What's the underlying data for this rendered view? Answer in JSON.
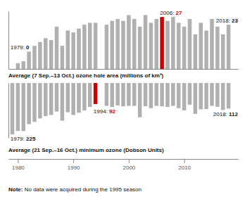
{
  "chart_data": [
    {
      "type": "bar",
      "title": "Average (7 Sep.–13 Oct.) ozone hole area (millions of km²)",
      "x": [
        1979,
        1980,
        1981,
        1982,
        1983,
        1984,
        1985,
        1986,
        1987,
        1988,
        1989,
        1990,
        1991,
        1992,
        1993,
        1994,
        1995,
        1996,
        1997,
        1998,
        1999,
        2000,
        2001,
        2002,
        2003,
        2004,
        2005,
        2006,
        2007,
        2008,
        2009,
        2010,
        2011,
        2012,
        2013,
        2014,
        2015,
        2016,
        2017,
        2018
      ],
      "values": [
        0,
        3,
        4,
        9,
        12,
        14,
        16,
        15,
        22,
        12,
        20,
        19,
        21,
        23,
        24,
        24,
        null,
        23,
        25,
        26,
        25,
        28,
        26,
        22,
        28,
        24,
        26,
        27,
        25,
        27,
        24,
        22,
        26,
        18,
        24,
        20,
        26,
        22,
        18,
        23
      ],
      "color": "#b0b0b0",
      "colors": [
        "#b0b0b0",
        "#b0b0b0",
        "#b0b0b0",
        "#b0b0b0",
        "#b0b0b0",
        "#b0b0b0",
        "#b0b0b0",
        "#b0b0b0",
        "#b0b0b0",
        "#b0b0b0",
        "#b0b0b0",
        "#b0b0b0",
        "#b0b0b0",
        "#b0b0b0",
        "#b0b0b0",
        "#b0b0b0",
        "#b0b0b0",
        "#b0b0b0",
        "#b0b0b0",
        "#b0b0b0",
        "#b0b0b0",
        "#b0b0b0",
        "#b0b0b0",
        "#b0b0b0",
        "#b0b0b0",
        "#b0b0b0",
        "#b0b0b0",
        "#cc0000",
        "#b0b0b0",
        "#b0b0b0",
        "#b0b0b0",
        "#b0b0b0",
        "#b0b0b0",
        "#b0b0b0",
        "#b0b0b0",
        "#b0b0b0",
        "#b0b0b0",
        "#b0b0b0",
        "#b0b0b0",
        "#b0b0b0"
      ],
      "xlim": [
        1978.3,
        2019.7
      ],
      "ylim": [
        0,
        30
      ],
      "tick_labels": false,
      "annotations": [
        {
          "x": 1979,
          "text": "1979: 0"
        },
        {
          "x": 2006,
          "text": "2006: 27"
        },
        {
          "x": 2018,
          "text": "2018: 23"
        }
      ]
    },
    {
      "type": "bar",
      "title": "Average (21 Sep.–16 Oct.) minimum ozone (Dobson Units)",
      "x": [
        1979,
        1980,
        1981,
        1982,
        1983,
        1984,
        1985,
        1986,
        1987,
        1988,
        1989,
        1990,
        1991,
        1992,
        1993,
        1994,
        1995,
        1996,
        1997,
        1998,
        1999,
        2000,
        2001,
        2002,
        2003,
        2004,
        2005,
        2006,
        2007,
        2008,
        2009,
        2010,
        2011,
        2012,
        2013,
        2014,
        2015,
        2016,
        2017,
        2018
      ],
      "values": [
        225,
        210,
        210,
        180,
        170,
        155,
        145,
        140,
        125,
        165,
        128,
        140,
        130,
        120,
        105,
        92,
        null,
        100,
        105,
        98,
        102,
        100,
        100,
        150,
        102,
        110,
        100,
        102,
        105,
        100,
        110,
        120,
        95,
        135,
        115,
        114,
        100,
        104,
        118,
        112
      ],
      "color": "#b0b0b0",
      "colors": [
        "#b0b0b0",
        "#b0b0b0",
        "#b0b0b0",
        "#b0b0b0",
        "#b0b0b0",
        "#b0b0b0",
        "#b0b0b0",
        "#b0b0b0",
        "#b0b0b0",
        "#b0b0b0",
        "#b0b0b0",
        "#b0b0b0",
        "#b0b0b0",
        "#b0b0b0",
        "#b0b0b0",
        "#cc0000",
        "#b0b0b0",
        "#b0b0b0",
        "#b0b0b0",
        "#b0b0b0",
        "#b0b0b0",
        "#b0b0b0",
        "#b0b0b0",
        "#b0b0b0",
        "#b0b0b0",
        "#b0b0b0",
        "#b0b0b0",
        "#b0b0b0",
        "#b0b0b0",
        "#b0b0b0",
        "#b0b0b0",
        "#b0b0b0",
        "#b0b0b0",
        "#b0b0b0",
        "#b0b0b0",
        "#b0b0b0",
        "#b0b0b0",
        "#b0b0b0",
        "#b0b0b0",
        "#b0b0b0"
      ],
      "xlim": [
        1978.3,
        2019.7
      ],
      "xticks": [
        1980,
        1990,
        2000,
        2010
      ],
      "ylim": [
        240,
        0
      ],
      "tick_labels": "x",
      "annotations": [
        {
          "x": 1979,
          "text": "1979: 225"
        },
        {
          "x": 1994,
          "text": "1994: 92"
        },
        {
          "x": 2018,
          "text": "2018: 112"
        },
        {
          "text": "Note: No data were acquired during the 1995 season"
        }
      ]
    }
  ]
}
